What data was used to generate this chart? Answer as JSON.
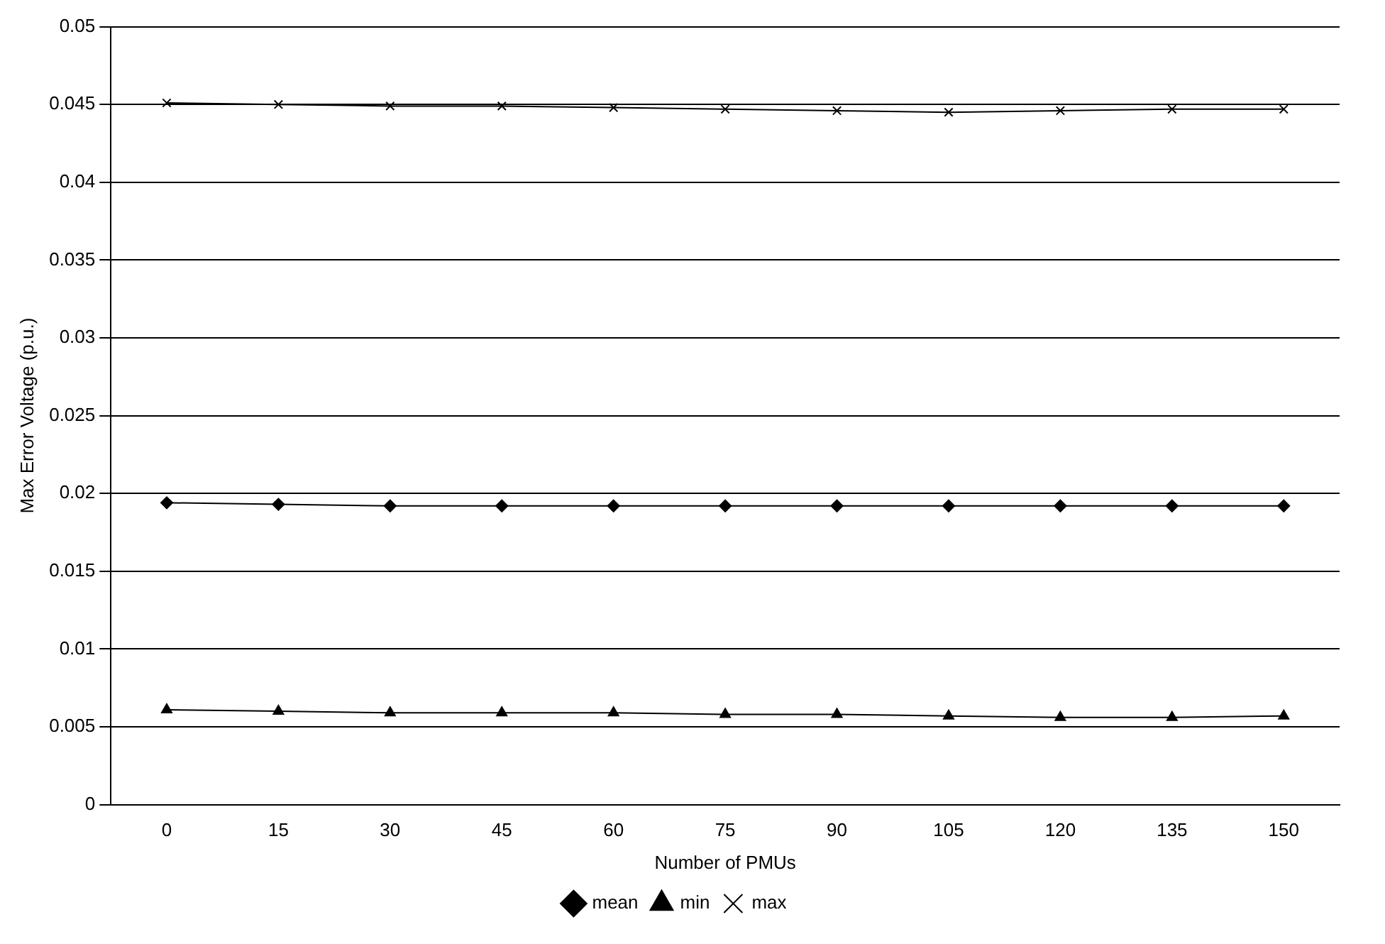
{
  "chart_data": {
    "type": "line",
    "xlabel": "Number of PMUs",
    "ylabel": "Max Error Voltage (p.u.)",
    "categories": [
      "0",
      "15",
      "30",
      "45",
      "60",
      "75",
      "90",
      "105",
      "120",
      "135",
      "150"
    ],
    "series": [
      {
        "name": "mean",
        "color": "#000000",
        "marker": "diamond",
        "values": [
          0.0194,
          0.0193,
          0.0192,
          0.0192,
          0.0192,
          0.0192,
          0.0192,
          0.0192,
          0.0192,
          0.0192,
          0.0192
        ]
      },
      {
        "name": "min",
        "color": "#000000",
        "marker": "triangle",
        "values": [
          0.0061,
          0.006,
          0.0059,
          0.0059,
          0.0059,
          0.0058,
          0.0058,
          0.0057,
          0.0056,
          0.0056,
          0.0057
        ]
      },
      {
        "name": "max",
        "color": "#000000",
        "marker": "cross",
        "values": [
          0.0451,
          0.045,
          0.0449,
          0.0449,
          0.0448,
          0.0447,
          0.0446,
          0.0445,
          0.0446,
          0.0447,
          0.0447
        ]
      }
    ],
    "ylim": [
      0,
      0.05
    ],
    "yticks": [
      0,
      0.005,
      0.01,
      0.015,
      0.02,
      0.025,
      0.03,
      0.035,
      0.04,
      0.045,
      0.05
    ],
    "grid": "y",
    "legend": "bottom"
  }
}
